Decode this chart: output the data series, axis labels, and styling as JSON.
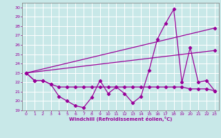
{
  "xlabel": "Windchill (Refroidissement éolien,°C)",
  "xlim": [
    -0.5,
    23.5
  ],
  "ylim": [
    19,
    30.5
  ],
  "yticks": [
    19,
    20,
    21,
    22,
    23,
    24,
    25,
    26,
    27,
    28,
    29,
    30
  ],
  "xticks": [
    0,
    1,
    2,
    3,
    4,
    5,
    6,
    7,
    8,
    9,
    10,
    11,
    12,
    13,
    14,
    15,
    16,
    17,
    18,
    19,
    20,
    21,
    22,
    23
  ],
  "background_color": "#c8e8e8",
  "grid_color": "#aacccc",
  "line_color": "#990099",
  "line1_x": [
    0,
    1,
    2,
    3,
    4,
    5,
    6,
    7,
    8,
    9,
    10,
    11,
    12,
    13,
    14,
    15,
    16,
    17,
    18,
    19,
    20,
    21,
    22,
    23
  ],
  "line1_y": [
    23.0,
    22.2,
    22.2,
    21.8,
    20.5,
    20.0,
    19.5,
    19.3,
    20.4,
    22.2,
    20.8,
    21.5,
    20.8,
    19.8,
    20.5,
    23.3,
    26.6,
    28.3,
    29.8,
    22.0,
    25.7,
    22.0,
    22.2,
    21.1
  ],
  "line2_x": [
    0,
    1,
    2,
    3,
    4,
    5,
    6,
    7,
    8,
    9,
    10,
    11,
    12,
    13,
    14,
    15,
    16,
    17,
    18,
    19,
    20,
    21,
    22,
    23
  ],
  "line2_y": [
    23.0,
    22.2,
    22.2,
    21.8,
    21.5,
    21.5,
    21.5,
    21.5,
    21.5,
    21.5,
    21.5,
    21.5,
    21.5,
    21.5,
    21.5,
    21.5,
    21.5,
    21.5,
    21.5,
    21.5,
    21.3,
    21.3,
    21.3,
    21.1
  ],
  "line3_x": [
    0,
    23
  ],
  "line3_y": [
    23.0,
    27.8
  ],
  "line4_x": [
    0,
    23
  ],
  "line4_y": [
    23.0,
    25.4
  ]
}
